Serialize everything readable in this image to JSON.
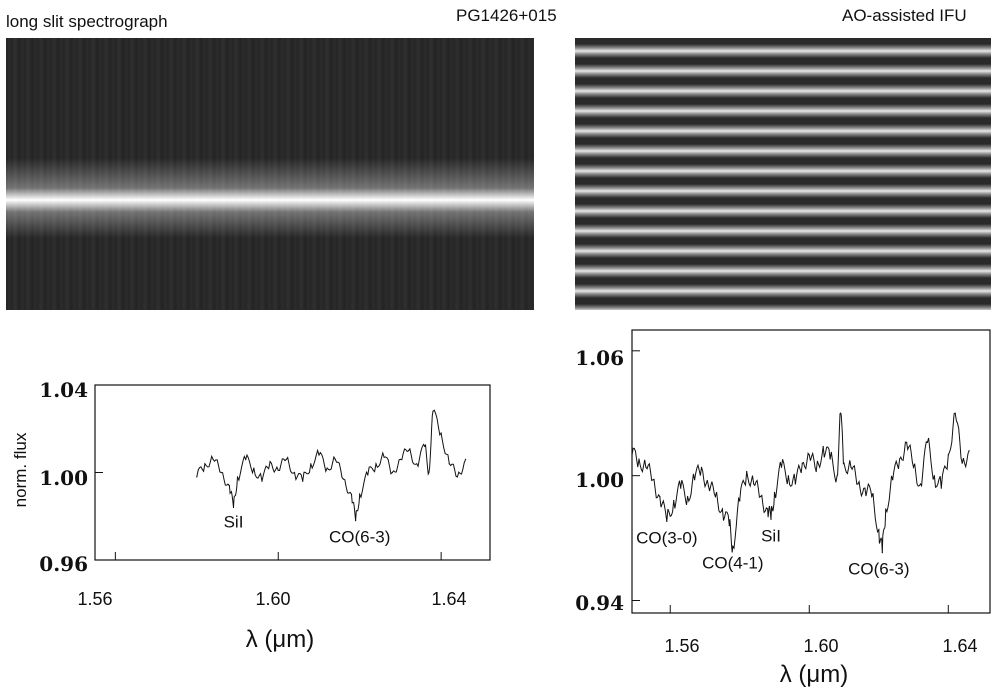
{
  "header": {
    "left_title": "long slit spectrograph",
    "center_title": "PG1426+015",
    "right_title": "AO-assisted IFU"
  },
  "images": {
    "left": "long slit 2D spectrum",
    "right": "IFU 2D spectrum"
  },
  "chart_data": [
    {
      "type": "line",
      "title": "",
      "xlabel": "λ (μm)",
      "ylabel": "norm. flux",
      "xlim": [
        1.555,
        1.652
      ],
      "ylim": [
        0.96,
        1.04
      ],
      "xticks": [
        "1.56",
        "1.60",
        "1.64"
      ],
      "yticks": [
        "1.04",
        "1.00",
        "0.96"
      ],
      "annotations": [
        {
          "text": "SiI",
          "x": 1.589,
          "y": 0.985
        },
        {
          "text": "CO(6-3)",
          "x": 1.62,
          "y": 0.978
        }
      ],
      "series": [
        {
          "x": [
            1.58,
            1.582,
            1.584,
            1.586,
            1.588,
            1.589,
            1.59,
            1.592,
            1.594,
            1.596,
            1.598,
            1.6,
            1.602,
            1.604,
            1.606,
            1.608,
            1.61,
            1.612,
            1.614,
            1.616,
            1.618,
            1.619,
            1.62,
            1.622,
            1.624,
            1.626,
            1.628,
            1.63,
            1.632,
            1.634,
            1.636,
            1.637,
            1.638,
            1.64,
            1.642,
            1.644,
            1.646
          ],
          "values": [
            0.998,
            1.004,
            1.006,
            1.0,
            0.994,
            0.984,
            0.998,
            1.006,
            1.002,
            0.996,
            1.005,
            1.001,
            1.006,
            1.0,
            0.996,
            1.004,
            1.008,
            1.002,
            1.006,
            0.997,
            0.99,
            0.978,
            0.99,
            0.999,
            1.004,
            1.007,
            1.0,
            1.006,
            1.01,
            1.004,
            1.012,
            1.0,
            1.028,
            1.018,
            1.004,
            0.998,
            1.006
          ]
        }
      ]
    },
    {
      "type": "line",
      "title": "",
      "xlabel": "λ (μm)",
      "ylabel": "",
      "xlim": [
        1.549,
        1.652
      ],
      "ylim": [
        0.934,
        1.07
      ],
      "xticks": [
        "1.56",
        "1.60",
        "1.64"
      ],
      "yticks": [
        "1.06",
        "1.00",
        "0.94"
      ],
      "annotations": [
        {
          "text": "CO(3-0)",
          "x": 1.559,
          "y": 0.978
        },
        {
          "text": "CO(4-1)",
          "x": 1.578,
          "y": 0.966
        },
        {
          "text": "SiI",
          "x": 1.589,
          "y": 0.979
        },
        {
          "text": "CO(6-3)",
          "x": 1.62,
          "y": 0.963
        }
      ],
      "series": [
        {
          "x": [
            1.549,
            1.551,
            1.553,
            1.555,
            1.557,
            1.559,
            1.561,
            1.563,
            1.565,
            1.567,
            1.569,
            1.571,
            1.573,
            1.575,
            1.577,
            1.578,
            1.58,
            1.582,
            1.584,
            1.586,
            1.588,
            1.589,
            1.59,
            1.592,
            1.594,
            1.596,
            1.598,
            1.6,
            1.602,
            1.604,
            1.606,
            1.608,
            1.609,
            1.61,
            1.612,
            1.614,
            1.616,
            1.618,
            1.62,
            1.621,
            1.622,
            1.624,
            1.626,
            1.628,
            1.63,
            1.632,
            1.634,
            1.636,
            1.638,
            1.64,
            1.642,
            1.644,
            1.646
          ],
          "values": [
            1.01,
            1.008,
            1.004,
            0.998,
            0.99,
            0.978,
            0.988,
            0.994,
            0.99,
            0.998,
            1.004,
            0.995,
            0.99,
            0.984,
            0.976,
            0.966,
            0.988,
            1.002,
            0.996,
            0.99,
            0.984,
            0.979,
            0.992,
            1.004,
            1.0,
            0.996,
            1.006,
            1.01,
            1.002,
            1.014,
            1.008,
            1.0,
            1.03,
            1.006,
            1.004,
            0.996,
            0.994,
            0.99,
            0.974,
            0.963,
            0.984,
            0.998,
            1.008,
            1.016,
            1.004,
            0.996,
            1.016,
            1.0,
            0.994,
            1.01,
            1.03,
            1.006,
            1.012
          ]
        }
      ]
    }
  ]
}
